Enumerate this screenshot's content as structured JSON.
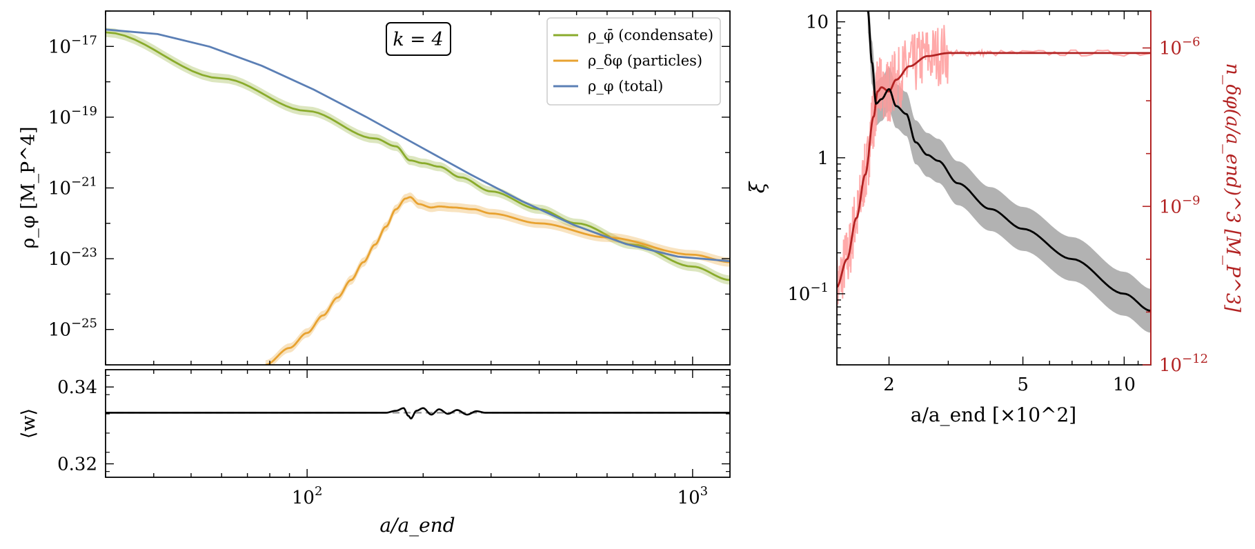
{
  "chart_data": [
    {
      "id": "energy-density",
      "type": "line",
      "title": "",
      "xlabel": "a/a_end",
      "ylabel": "ρ_φ [M_P^4]",
      "xscale": "log",
      "yscale": "log",
      "xlim": [
        30,
        1250
      ],
      "ylim": [
        1e-26,
        1e-16
      ],
      "x_ticks": [
        {
          "v": 100,
          "label": "10^2"
        },
        {
          "v": 1000,
          "label": "10^3"
        }
      ],
      "y_ticks": [
        {
          "v": 1e-17,
          "label": "10^−17"
        },
        {
          "v": 1e-19,
          "label": "10^−19"
        },
        {
          "v": 1e-21,
          "label": "10^−21"
        },
        {
          "v": 1e-23,
          "label": "10^−23"
        },
        {
          "v": 1e-25,
          "label": "10^−25"
        }
      ],
      "annotation": "k = 4",
      "legend_position": "top-right",
      "series": [
        {
          "name": "ρ_φ̄ (condensate)",
          "color": "#8aab2c",
          "points": [
            [
              30,
              2.5e-17
            ],
            [
              60,
              1.25e-18
            ],
            [
              100,
              1.5e-19
            ],
            [
              150,
              2.5e-20
            ],
            [
              170,
              1.5e-20
            ],
            [
              185,
              6e-21
            ],
            [
              200,
              5e-21
            ],
            [
              220,
              4e-21
            ],
            [
              250,
              2e-21
            ],
            [
              300,
              8e-22
            ],
            [
              400,
              2.5e-22
            ],
            [
              500,
              1e-22
            ],
            [
              700,
              2.5e-23
            ],
            [
              1000,
              6e-24
            ],
            [
              1250,
              2.5e-24
            ]
          ]
        },
        {
          "name": "ρ_δφ (particles)",
          "color": "#e8a230",
          "points": [
            [
              78,
              1e-26
            ],
            [
              90,
              3e-26
            ],
            [
              100,
              8e-26
            ],
            [
              110,
              2.5e-25
            ],
            [
              120,
              8e-25
            ],
            [
              130,
              2.5e-24
            ],
            [
              140,
              8e-24
            ],
            [
              150,
              2.5e-23
            ],
            [
              160,
              8e-23
            ],
            [
              170,
              2.5e-22
            ],
            [
              180,
              5e-22
            ],
            [
              185,
              5.5e-22
            ],
            [
              195,
              3.5e-22
            ],
            [
              210,
              2.8e-22
            ],
            [
              220,
              3e-22
            ],
            [
              240,
              2.8e-22
            ],
            [
              270,
              2.5e-22
            ],
            [
              300,
              1.9e-22
            ],
            [
              400,
              1e-22
            ],
            [
              600,
              4e-23
            ],
            [
              1000,
              1.3e-23
            ],
            [
              1250,
              8e-24
            ]
          ]
        },
        {
          "name": "ρ_φ (total)",
          "color": "#5b7fb5",
          "points": [
            [
              30,
              3e-17
            ],
            [
              1250,
              8.5e-24
            ]
          ]
        }
      ]
    },
    {
      "id": "equation-of-state",
      "type": "line",
      "xlabel": "",
      "ylabel": "⟨w⟩",
      "xscale": "log",
      "xlim": [
        30,
        1250
      ],
      "ylim": [
        0.3165,
        0.3445
      ],
      "y_ticks": [
        {
          "v": 0.34,
          "label": "0.34"
        },
        {
          "v": 0.32,
          "label": "0.32"
        }
      ],
      "reference": 0.3333,
      "series": [
        {
          "name": "⟨w⟩",
          "color": "#000000",
          "points": [
            [
              30,
              0.3333
            ],
            [
              160,
              0.3333
            ],
            [
              170,
              0.3338
            ],
            [
              178,
              0.3345
            ],
            [
              183,
              0.3325
            ],
            [
              186,
              0.3318
            ],
            [
              192,
              0.3338
            ],
            [
              200,
              0.3345
            ],
            [
              210,
              0.3328
            ],
            [
              220,
              0.3342
            ],
            [
              232,
              0.333
            ],
            [
              245,
              0.334
            ],
            [
              260,
              0.3328
            ],
            [
              275,
              0.3337
            ],
            [
              290,
              0.3333
            ],
            [
              1250,
              0.3333
            ]
          ]
        }
      ]
    },
    {
      "id": "ratio-and-number-density",
      "type": "line",
      "xlabel": "a/a_end [×10^2]",
      "ylabel": "ξ",
      "y2label": "n_δφ(a/a_end)^3 [M_P^3]",
      "xscale": "log",
      "yscale": "log",
      "xlim": [
        1.4,
        12
      ],
      "ylim": [
        0.03,
        12
      ],
      "y2lim": [
        1e-12,
        5e-06
      ],
      "x_ticks": [
        {
          "v": 2,
          "label": "2"
        },
        {
          "v": 5,
          "label": "5"
        },
        {
          "v": 10,
          "label": "10"
        }
      ],
      "y_ticks": [
        {
          "v": 10,
          "label": "10"
        },
        {
          "v": 1,
          "label": "1"
        },
        {
          "v": 0.1,
          "label": "10^−1"
        }
      ],
      "y2_ticks": [
        {
          "v": 1e-06,
          "label": "10^−6"
        },
        {
          "v": 1e-09,
          "label": "10^−9"
        },
        {
          "v": 1e-12,
          "label": "10^−12"
        }
      ],
      "axis_color_right": "#b22222",
      "series": [
        {
          "name": "ξ",
          "color": "#000000",
          "axis": "left",
          "points": [
            [
              1.73,
              12
            ],
            [
              1.78,
              5
            ],
            [
              1.83,
              2.5
            ],
            [
              1.9,
              2.7
            ],
            [
              2.0,
              3.2
            ],
            [
              2.1,
              2.4
            ],
            [
              2.25,
              2.1
            ],
            [
              2.4,
              1.3
            ],
            [
              2.6,
              1.05
            ],
            [
              2.8,
              0.95
            ],
            [
              3.2,
              0.65
            ],
            [
              4,
              0.42
            ],
            [
              5,
              0.3
            ],
            [
              7,
              0.18
            ],
            [
              10,
              0.1
            ],
            [
              12,
              0.075
            ]
          ]
        },
        {
          "name": "n_δφ",
          "color": "#b22222",
          "axis": "right",
          "points": [
            [
              1.4,
              3e-11
            ],
            [
              1.5,
              1e-10
            ],
            [
              1.6,
              6e-10
            ],
            [
              1.7,
              4e-09
            ],
            [
              1.8,
              5e-08
            ],
            [
              1.85,
              1.5e-07
            ],
            [
              1.9,
              1.8e-07
            ],
            [
              2.0,
              1.5e-07
            ],
            [
              2.1,
              2.5e-07
            ],
            [
              2.3,
              4.5e-07
            ],
            [
              2.6,
              7e-07
            ],
            [
              3,
              8e-07
            ],
            [
              4,
              8e-07
            ],
            [
              12,
              8e-07
            ]
          ]
        }
      ]
    }
  ]
}
